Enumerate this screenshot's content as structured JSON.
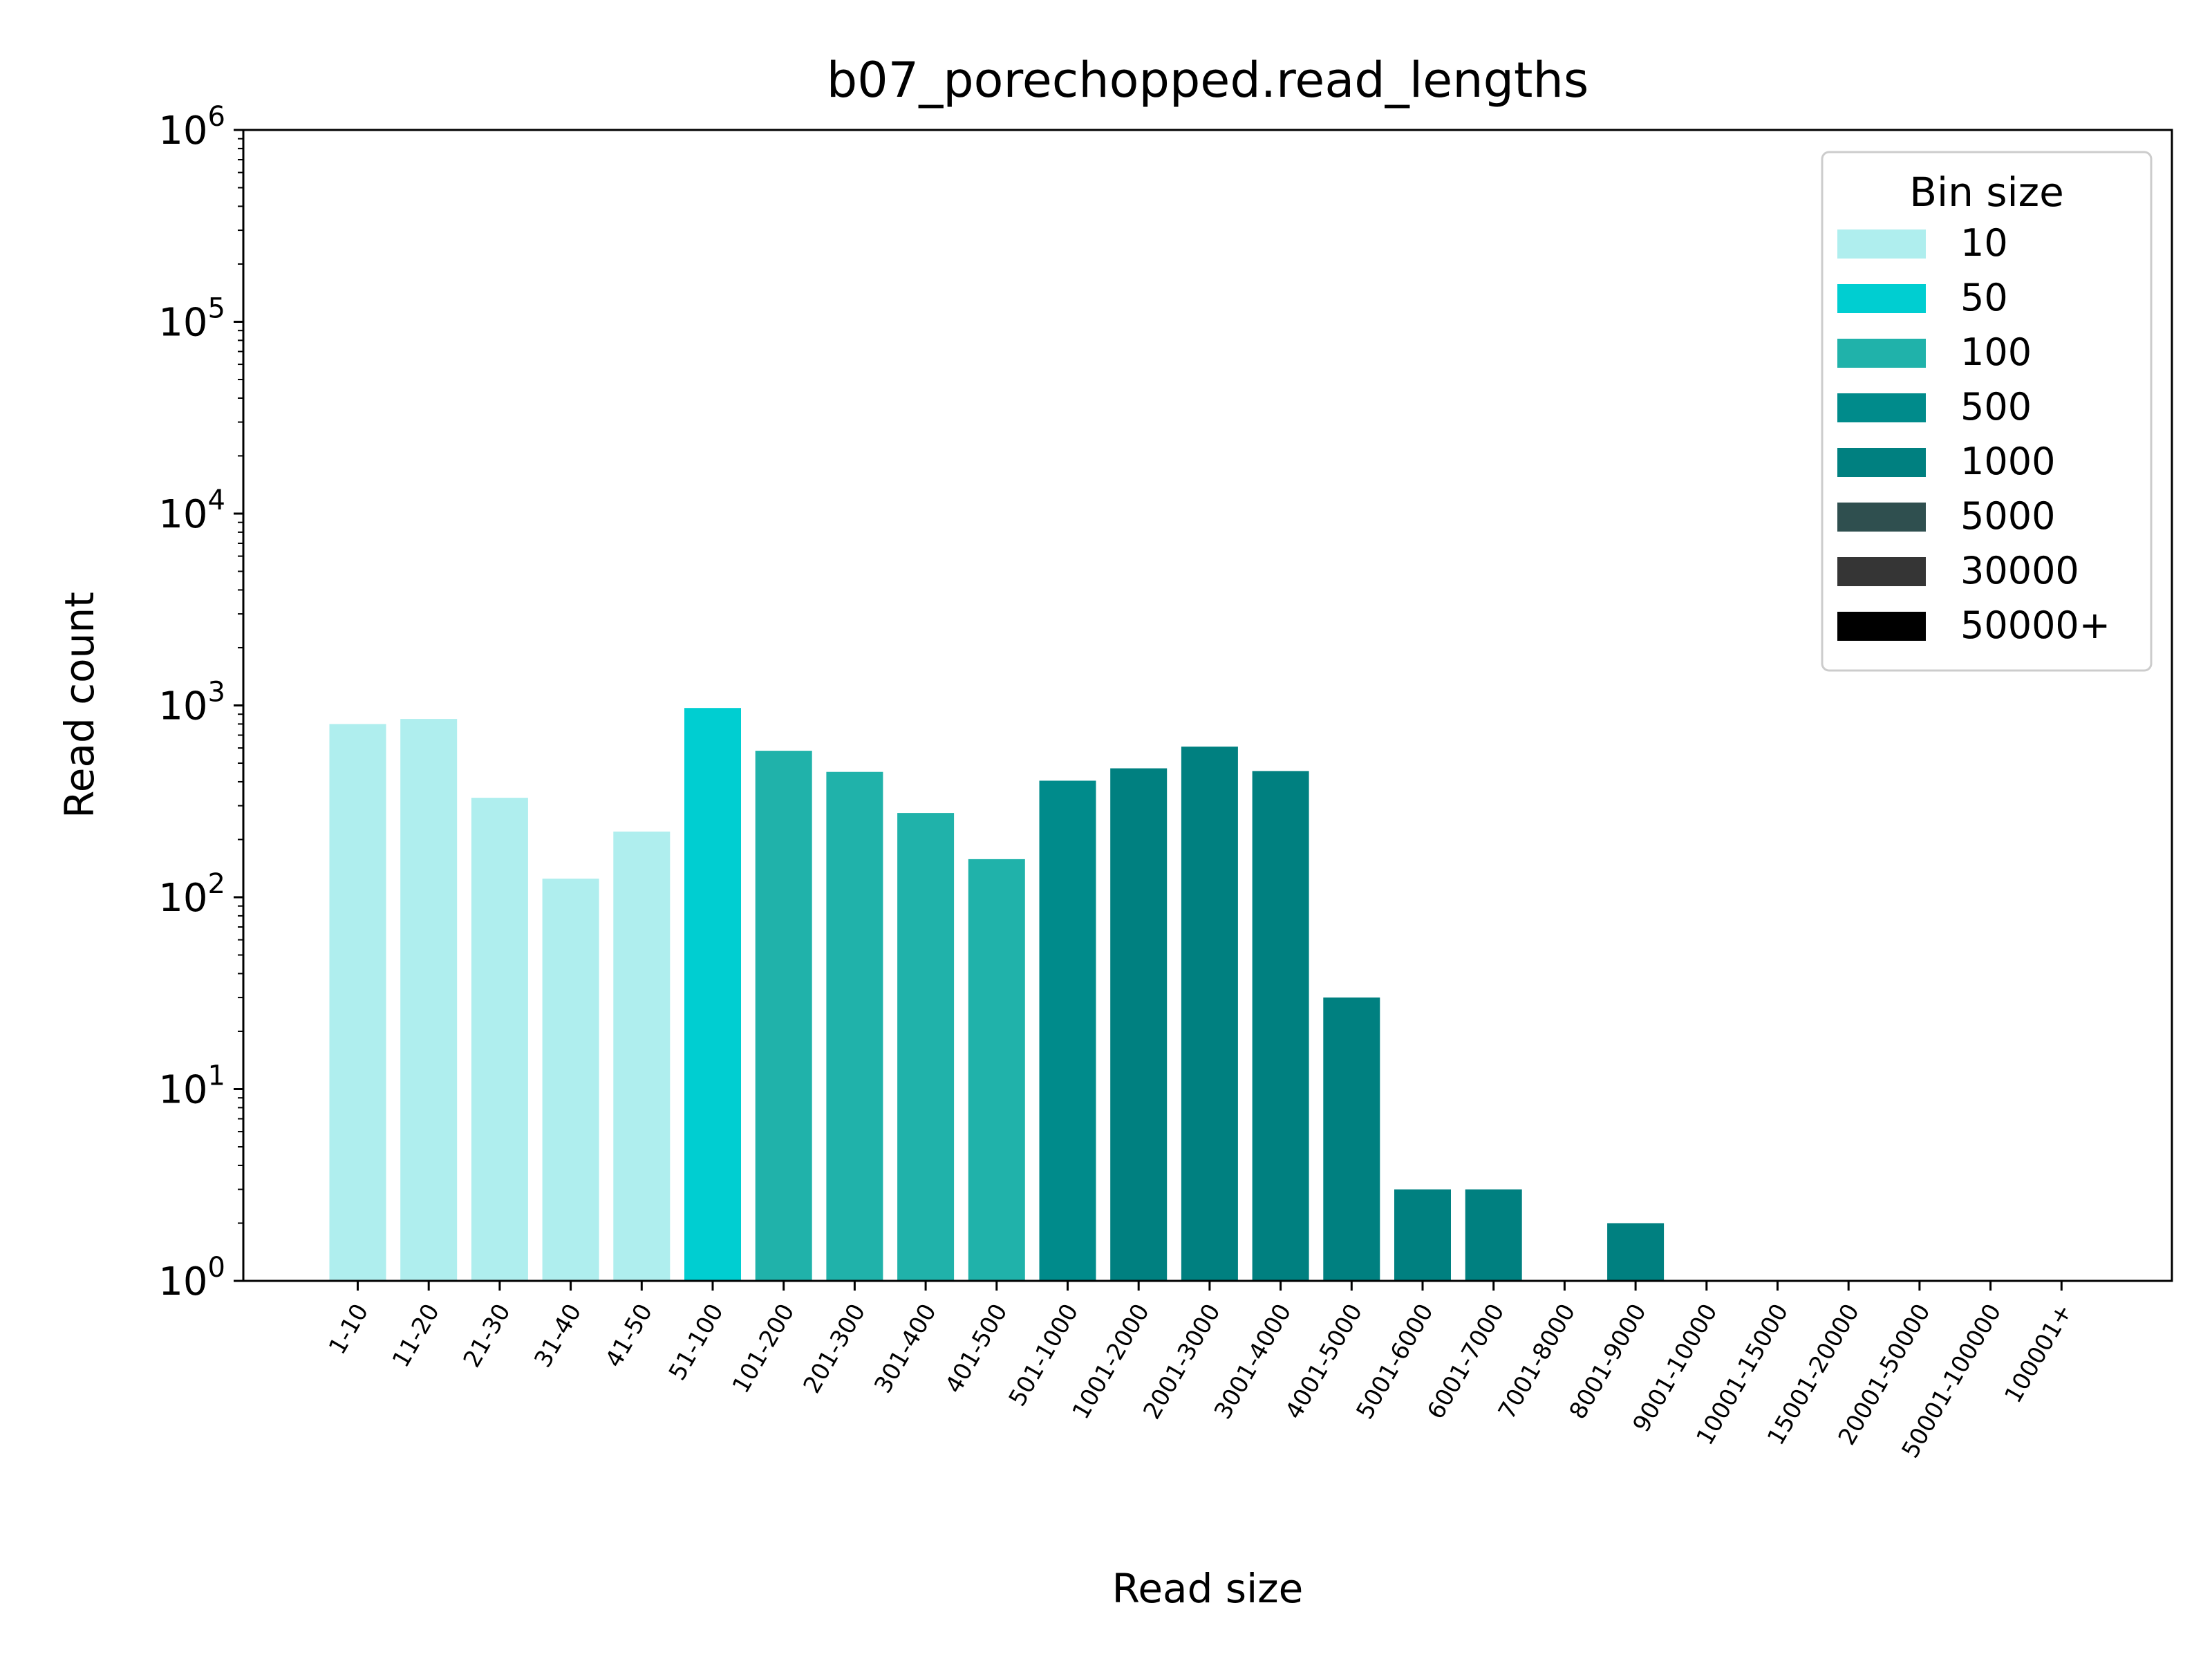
{
  "chart_data": {
    "type": "bar",
    "title": "b07_porechopped.read_lengths",
    "xlabel": "Read size",
    "ylabel": "Read count",
    "yscale": "log",
    "ylim": [
      1,
      1000000
    ],
    "yticks": [
      {
        "base": "10",
        "exp": "0"
      },
      {
        "base": "10",
        "exp": "1"
      },
      {
        "base": "10",
        "exp": "2"
      },
      {
        "base": "10",
        "exp": "3"
      },
      {
        "base": "10",
        "exp": "4"
      },
      {
        "base": "10",
        "exp": "5"
      },
      {
        "base": "10",
        "exp": "6"
      }
    ],
    "categories": [
      "1-10",
      "11-20",
      "21-30",
      "31-40",
      "41-50",
      "51-100",
      "101-200",
      "201-300",
      "301-400",
      "401-500",
      "501-1000",
      "1001-2000",
      "2001-3000",
      "3001-4000",
      "4001-5000",
      "5001-6000",
      "6001-7000",
      "7001-8000",
      "8001-9000",
      "9001-10000",
      "10001-15000",
      "15001-20000",
      "20001-50000",
      "50001-100000",
      "100001+"
    ],
    "values": [
      800,
      850,
      330,
      125,
      220,
      970,
      580,
      450,
      275,
      158,
      405,
      470,
      610,
      455,
      30,
      3,
      3,
      0,
      2,
      0,
      0,
      0,
      0,
      0,
      0
    ],
    "bin_group": [
      0,
      0,
      0,
      0,
      0,
      1,
      2,
      2,
      2,
      2,
      3,
      4,
      4,
      4,
      4,
      4,
      4,
      4,
      4,
      4,
      5,
      5,
      6,
      7,
      7
    ],
    "legend": {
      "title": "Bin size",
      "position": "top-right",
      "entries": [
        {
          "label": "10",
          "color": "#afeeee"
        },
        {
          "label": "50",
          "color": "#00ced1"
        },
        {
          "label": "100",
          "color": "#20b2aa"
        },
        {
          "label": "500",
          "color": "#008b8b"
        },
        {
          "label": "1000",
          "color": "#008080"
        },
        {
          "label": "5000",
          "color": "#2f4f4f"
        },
        {
          "label": "30000",
          "color": "#353535"
        },
        {
          "label": "50000+",
          "color": "#000000"
        }
      ]
    },
    "grid": false
  }
}
